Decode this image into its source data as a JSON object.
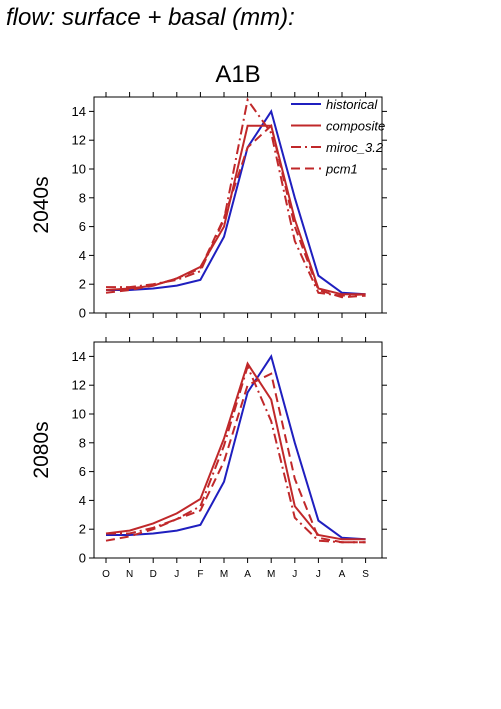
{
  "header": {
    "title": "d flow: surface + basal (mm):"
  },
  "chart_data": {
    "type": "line",
    "title": "A1B",
    "categories": [
      "O",
      "N",
      "D",
      "J",
      "F",
      "M",
      "A",
      "M",
      "J",
      "J",
      "A",
      "S"
    ],
    "ylim": [
      0,
      15
    ],
    "yticks": [
      0,
      2,
      4,
      6,
      8,
      10,
      12,
      14
    ],
    "legend_position": "top-right",
    "series_styles": [
      {
        "name": "historical",
        "color": "#1f1fbf",
        "dash": ""
      },
      {
        "name": "composite",
        "color": "#c0282a",
        "dash": ""
      },
      {
        "name": "miroc_3.2",
        "color": "#c0282a",
        "dash": "10,4,2,4"
      },
      {
        "name": "pcm1",
        "color": "#c0282a",
        "dash": "9,5"
      }
    ],
    "panels": [
      {
        "label": "2040s",
        "series": [
          {
            "name": "historical",
            "values": [
              1.6,
              1.6,
              1.7,
              1.9,
              2.3,
              5.3,
              11.5,
              14.0,
              8.0,
              2.6,
              1.4,
              1.3
            ]
          },
          {
            "name": "composite",
            "values": [
              1.6,
              1.7,
              1.9,
              2.4,
              3.2,
              6.0,
              13.0,
              13.0,
              6.5,
              1.7,
              1.3,
              1.3
            ]
          },
          {
            "name": "miroc_3.2",
            "values": [
              1.8,
              1.8,
              2.0,
              2.3,
              2.9,
              6.5,
              14.8,
              12.5,
              5.0,
              1.4,
              1.2,
              1.3
            ]
          },
          {
            "name": "pcm1",
            "values": [
              1.4,
              1.6,
              1.9,
              2.4,
              3.1,
              6.6,
              11.5,
              13.0,
              6.0,
              1.6,
              1.1,
              1.2
            ]
          }
        ]
      },
      {
        "label": "2080s",
        "series": [
          {
            "name": "historical",
            "values": [
              1.6,
              1.6,
              1.7,
              1.9,
              2.3,
              5.3,
              11.5,
              14.0,
              8.0,
              2.6,
              1.4,
              1.3
            ]
          },
          {
            "name": "composite",
            "values": [
              1.7,
              1.9,
              2.4,
              3.1,
              4.1,
              8.3,
              13.5,
              11.0,
              3.6,
              1.6,
              1.3,
              1.3
            ]
          },
          {
            "name": "miroc_3.2",
            "values": [
              1.7,
              1.7,
              2.1,
              2.7,
              3.6,
              7.8,
              13.3,
              9.5,
              2.8,
              1.2,
              1.1,
              1.1
            ]
          },
          {
            "name": "pcm1",
            "values": [
              1.2,
              1.5,
              2.0,
              2.7,
              3.3,
              6.7,
              12.0,
              12.8,
              5.5,
              1.4,
              1.1,
              1.1
            ]
          }
        ]
      }
    ]
  }
}
